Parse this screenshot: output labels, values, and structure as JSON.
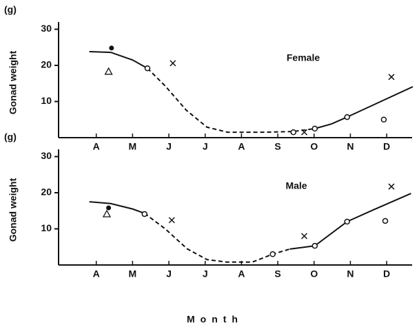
{
  "chart_data": [
    {
      "type": "line",
      "unit_label": "(g)",
      "ylabel": "Gonad weight",
      "annotation": "Female",
      "xlim": [
        0,
        9.7
      ],
      "xticks": [
        {
          "value": 1,
          "label": "A"
        },
        {
          "value": 2,
          "label": "M"
        },
        {
          "value": 3,
          "label": "J"
        },
        {
          "value": 4,
          "label": "J"
        },
        {
          "value": 5,
          "label": "A"
        },
        {
          "value": 6,
          "label": "S"
        },
        {
          "value": 7,
          "label": "O"
        },
        {
          "value": 8,
          "label": "N"
        },
        {
          "value": 9,
          "label": "D"
        }
      ],
      "ylim": [
        0,
        32
      ],
      "yticks": [
        10,
        20,
        30
      ],
      "series": [
        {
          "marker": "solid",
          "color": "#111",
          "x": [
            0.81,
            1.4,
            2.0,
            2.41
          ],
          "values": [
            23.8,
            23.6,
            21.5,
            19.2
          ]
        },
        {
          "marker": "dashed",
          "color": "#111",
          "x": [
            2.41,
            2.9,
            3.48,
            4.05,
            4.62,
            5.57,
            6.43,
            7.02
          ],
          "values": [
            19.2,
            14.3,
            7.6,
            2.9,
            1.5,
            1.5,
            1.7,
            2.5
          ]
        },
        {
          "marker": "solid",
          "color": "#111",
          "x": [
            7.02,
            7.48,
            7.91,
            8.62,
            9.72
          ],
          "values": [
            2.5,
            3.8,
            5.7,
            9,
            14.1
          ]
        },
        {
          "marker": "filled-circle",
          "color": "#111",
          "x": [
            1.42
          ],
          "values": [
            24.8
          ]
        },
        {
          "marker": "triangle",
          "color": "#111",
          "x": [
            1.34
          ],
          "values": [
            18.3
          ]
        },
        {
          "marker": "open-circle",
          "color": "#111",
          "x": [
            2.41,
            6.43,
            7.02,
            7.91,
            8.92
          ],
          "values": [
            19.2,
            1.5,
            2.5,
            5.7,
            5.0
          ]
        },
        {
          "marker": "cross",
          "color": "#111",
          "x": [
            3.11,
            6.73,
            9.13
          ],
          "values": [
            20.6,
            1.5,
            16.8
          ]
        }
      ]
    },
    {
      "type": "line",
      "unit_label": "(g)",
      "ylabel": "Gonad weight",
      "annotation": "Male",
      "xlabel": "Month",
      "xlim": [
        0,
        9.7
      ],
      "xticks": [
        {
          "value": 1,
          "label": "A"
        },
        {
          "value": 2,
          "label": "M"
        },
        {
          "value": 3,
          "label": "J"
        },
        {
          "value": 4,
          "label": "J"
        },
        {
          "value": 5,
          "label": "A"
        },
        {
          "value": 6,
          "label": "S"
        },
        {
          "value": 7,
          "label": "O"
        },
        {
          "value": 8,
          "label": "N"
        },
        {
          "value": 9,
          "label": "D"
        }
      ],
      "ylim": [
        0,
        32
      ],
      "yticks": [
        10,
        20,
        30
      ],
      "series": [
        {
          "marker": "solid",
          "color": "#111",
          "x": [
            0.81,
            1.4,
            2.0,
            2.33
          ],
          "values": [
            17.5,
            17.0,
            15.5,
            14.3
          ]
        },
        {
          "marker": "dashed",
          "color": "#111",
          "x": [
            2.33,
            2.9,
            3.5,
            4.05,
            4.6,
            5.3,
            5.86,
            6.33
          ],
          "values": [
            14.3,
            10,
            4.5,
            1.5,
            0.8,
            0.8,
            3.0,
            4.4
          ]
        },
        {
          "marker": "solid",
          "color": "#111",
          "x": [
            6.33,
            7.02,
            7.91,
            8.62,
            9.67
          ],
          "values": [
            4.4,
            5.3,
            12,
            15.2,
            19.8
          ]
        },
        {
          "marker": "filled-circle",
          "color": "#111",
          "x": [
            1.34
          ],
          "values": [
            15.8
          ]
        },
        {
          "marker": "triangle",
          "color": "#111",
          "x": [
            1.29
          ],
          "values": [
            14.1
          ]
        },
        {
          "marker": "open-circle",
          "color": "#111",
          "x": [
            2.33,
            5.86,
            7.02,
            7.91,
            8.96
          ],
          "values": [
            14.1,
            3.0,
            5.3,
            12.0,
            12.2
          ]
        },
        {
          "marker": "cross",
          "color": "#111",
          "x": [
            3.08,
            6.73,
            9.13
          ],
          "values": [
            12.4,
            8.0,
            21.7
          ]
        }
      ]
    }
  ]
}
